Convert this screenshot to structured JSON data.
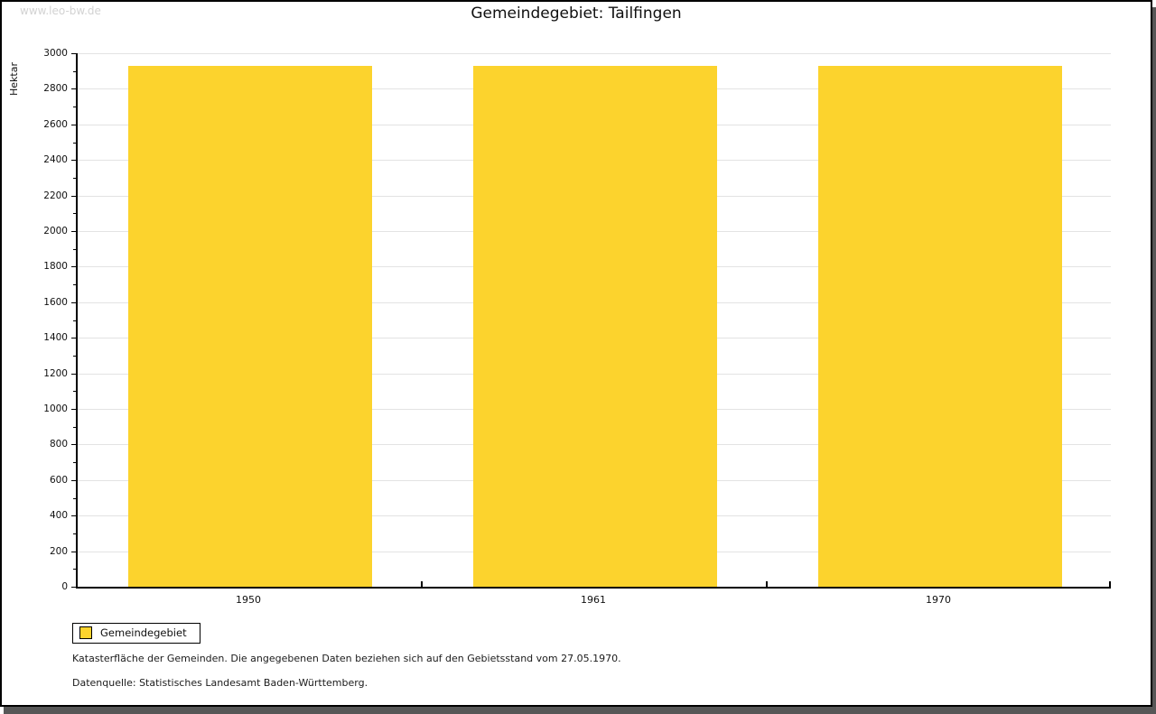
{
  "watermark": "www.leo-bw.de",
  "chart_data": {
    "type": "bar",
    "title": "Gemeindegebiet: Tailfingen",
    "ylabel": "Hektar",
    "xlabel": "",
    "categories": [
      "1950",
      "1961",
      "1970"
    ],
    "series": [
      {
        "name": "Gemeindegebiet",
        "values": [
          2930,
          2930,
          2930
        ]
      }
    ],
    "ylim": [
      0,
      3000
    ],
    "ytick_step": 200,
    "yminor_step": 100,
    "grid": "horizontal-major-only",
    "legend_position": "bottom-left",
    "bar_color": "#fcd32d"
  },
  "colors": {
    "bar": "#fcd32d",
    "gridline": "#e3e3e3",
    "axis": "#000000",
    "watermark_text": "#d2d2d2",
    "shadow": "#575757"
  },
  "footer": {
    "line1": "Katasterfläche der Gemeinden. Die angegebenen Daten beziehen sich auf den Gebietsstand vom 27.05.1970.",
    "line2": "Datenquelle: Statistisches Landesamt Baden-Württemberg."
  }
}
